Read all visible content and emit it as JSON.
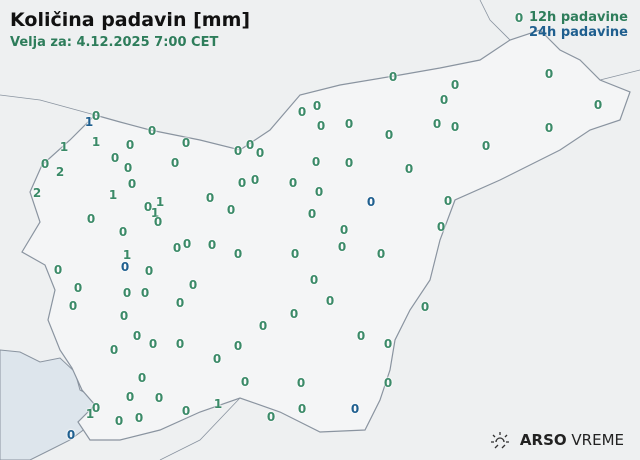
{
  "header": {
    "title": "Količina padavin [mm]",
    "valid_for": "Velja za: 4.12.2025 7:00 CET"
  },
  "legend": {
    "items": [
      {
        "label": "12h padavine",
        "color": "#2e7d5b"
      },
      {
        "label": "24h padavine",
        "color": "#1f5f8f"
      }
    ]
  },
  "colors": {
    "12h": "#3b8a68",
    "24h": "#1f5f8f",
    "sea": "#dde5ec",
    "border": "#8a94a0"
  },
  "stations": [
    {
      "value": "0",
      "type": "12h"
    },
    {
      "value": "0",
      "type": "12h"
    },
    {
      "value": "0",
      "type": "12h"
    },
    {
      "value": "0",
      "type": "12h"
    },
    {
      "value": "0",
      "type": "12h"
    },
    {
      "value": "0",
      "type": "12h"
    },
    {
      "value": "0",
      "type": "12h"
    },
    {
      "value": "0",
      "type": "12h"
    },
    {
      "value": "0",
      "type": "12h"
    },
    {
      "value": "1",
      "type": "24h"
    },
    {
      "value": "0",
      "type": "12h"
    },
    {
      "value": "0",
      "type": "12h"
    },
    {
      "value": "0",
      "type": "12h"
    },
    {
      "value": "0",
      "type": "12h"
    },
    {
      "value": "0",
      "type": "12h"
    },
    {
      "value": "0",
      "type": "12h"
    },
    {
      "value": "0",
      "type": "12h"
    },
    {
      "value": "1",
      "type": "12h"
    },
    {
      "value": "1",
      "type": "12h"
    },
    {
      "value": "0",
      "type": "12h"
    },
    {
      "value": "0",
      "type": "12h"
    },
    {
      "value": "0",
      "type": "12h"
    },
    {
      "value": "0",
      "type": "12h"
    },
    {
      "value": "0",
      "type": "12h"
    },
    {
      "value": "0",
      "type": "12h"
    },
    {
      "value": "0",
      "type": "12h"
    },
    {
      "value": "2",
      "type": "12h"
    },
    {
      "value": "0",
      "type": "12h"
    },
    {
      "value": "0",
      "type": "12h"
    },
    {
      "value": "0",
      "type": "12h"
    },
    {
      "value": "0",
      "type": "12h"
    },
    {
      "value": "0",
      "type": "12h"
    },
    {
      "value": "0",
      "type": "12h"
    },
    {
      "value": "2",
      "type": "12h"
    },
    {
      "value": "1",
      "type": "12h"
    },
    {
      "value": "0",
      "type": "12h"
    },
    {
      "value": "0",
      "type": "12h"
    },
    {
      "value": "0",
      "type": "12h"
    },
    {
      "value": "0",
      "type": "12h"
    },
    {
      "value": "0",
      "type": "12h"
    },
    {
      "value": "0",
      "type": "12h"
    },
    {
      "value": "0",
      "type": "12h"
    },
    {
      "value": "1",
      "type": "12h"
    },
    {
      "value": "1",
      "type": "12h"
    },
    {
      "value": "0",
      "type": "12h"
    },
    {
      "value": "0",
      "type": "12h"
    },
    {
      "value": "0",
      "type": "12h"
    },
    {
      "value": "0",
      "type": "24h"
    },
    {
      "value": "0",
      "type": "12h"
    },
    {
      "value": "0",
      "type": "12h"
    },
    {
      "value": "0",
      "type": "12h"
    },
    {
      "value": "0",
      "type": "12h"
    },
    {
      "value": "0",
      "type": "12h"
    },
    {
      "value": "0",
      "type": "12h"
    },
    {
      "value": "0",
      "type": "12h"
    },
    {
      "value": "0",
      "type": "12h"
    },
    {
      "value": "0",
      "type": "12h"
    },
    {
      "value": "0",
      "type": "12h"
    },
    {
      "value": "0",
      "type": "12h"
    },
    {
      "value": "0",
      "type": "12h"
    },
    {
      "value": "1",
      "type": "12h"
    },
    {
      "value": "0",
      "type": "24h"
    },
    {
      "value": "0",
      "type": "12h"
    },
    {
      "value": "0",
      "type": "12h"
    },
    {
      "value": "0",
      "type": "12h"
    },
    {
      "value": "0",
      "type": "12h"
    },
    {
      "value": "0",
      "type": "12h"
    },
    {
      "value": "0",
      "type": "12h"
    },
    {
      "value": "0",
      "type": "12h"
    },
    {
      "value": "0",
      "type": "12h"
    },
    {
      "value": "0",
      "type": "12h"
    },
    {
      "value": "0",
      "type": "12h"
    },
    {
      "value": "0",
      "type": "12h"
    },
    {
      "value": "0",
      "type": "12h"
    },
    {
      "value": "0",
      "type": "12h"
    },
    {
      "value": "0",
      "type": "12h"
    },
    {
      "value": "0",
      "type": "12h"
    },
    {
      "value": "0",
      "type": "12h"
    },
    {
      "value": "0",
      "type": "12h"
    },
    {
      "value": "0",
      "type": "12h"
    },
    {
      "value": "0",
      "type": "12h"
    },
    {
      "value": "0",
      "type": "12h"
    },
    {
      "value": "0",
      "type": "12h"
    },
    {
      "value": "0",
      "type": "12h"
    },
    {
      "value": "0",
      "type": "12h"
    },
    {
      "value": "0",
      "type": "12h"
    },
    {
      "value": "0",
      "type": "12h"
    },
    {
      "value": "0",
      "type": "12h"
    },
    {
      "value": "0",
      "type": "12h"
    },
    {
      "value": "0",
      "type": "12h"
    },
    {
      "value": "0",
      "type": "12h"
    },
    {
      "value": "1",
      "type": "12h"
    },
    {
      "value": "0",
      "type": "12h"
    },
    {
      "value": "0",
      "type": "12h"
    },
    {
      "value": "0",
      "type": "12h"
    },
    {
      "value": "1",
      "type": "12h"
    },
    {
      "value": "0",
      "type": "12h"
    },
    {
      "value": "0",
      "type": "12h"
    },
    {
      "value": "0",
      "type": "24h"
    },
    {
      "value": "0",
      "type": "24h"
    }
  ],
  "logo": {
    "brand": "ARSO",
    "suffix": "VREME"
  }
}
